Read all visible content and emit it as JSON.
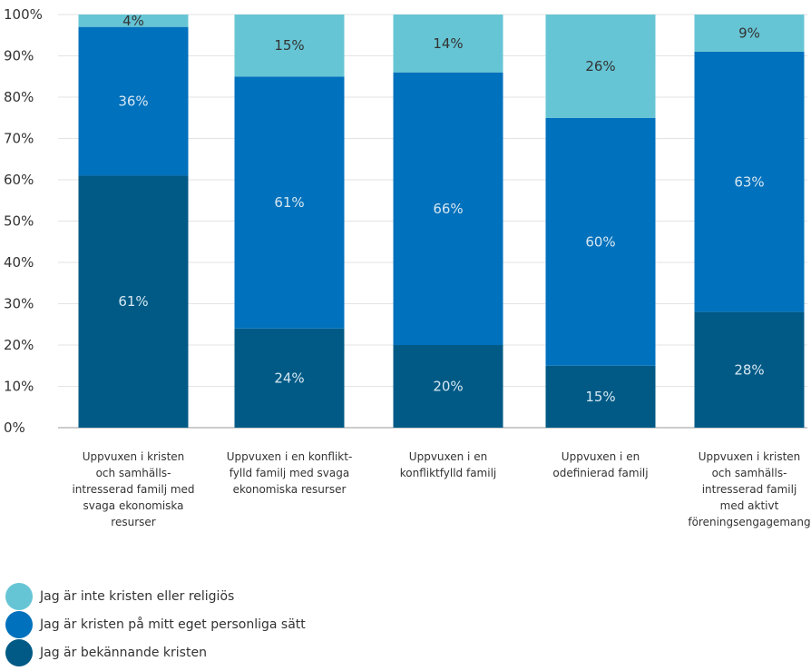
{
  "chart_data": {
    "type": "bar",
    "stacked": true,
    "categories": [
      [
        "Uppvuxen i kristen",
        "och samhälls-",
        "intresserad familj med",
        "svaga ekonomiska",
        "resurser"
      ],
      [
        "Uppvuxen i en konflikt-",
        "fylld familj med svaga",
        "ekonomiska resurser"
      ],
      [
        "Uppvuxen i en",
        "konfliktfylld familj"
      ],
      [
        "Uppvuxen i en",
        "odefinierad familj"
      ],
      [
        "Uppvuxen i kristen",
        "och samhälls-",
        "intresserad familj",
        "med aktivt",
        "föreningsengagemang"
      ]
    ],
    "series": [
      {
        "name": "Jag är bekännande kristen",
        "color": "#005a85",
        "labelColor": "#d6e7f2",
        "values": [
          61,
          24,
          20,
          15,
          28
        ]
      },
      {
        "name": "Jag är kristen på mitt eget personliga sätt",
        "color": "#0071bc",
        "labelColor": "#d6e7f2",
        "values": [
          36,
          61,
          66,
          60,
          63
        ]
      },
      {
        "name": "Jag är inte kristen eller religiös",
        "color": "#66c5d4",
        "labelColor": "#333333",
        "values": [
          4,
          15,
          14,
          26,
          9
        ]
      }
    ],
    "data_labels": [
      [
        "61%",
        "24%",
        "20%",
        "15%",
        "28%"
      ],
      [
        "36%",
        "61%",
        "66%",
        "60%",
        "63%"
      ],
      [
        "4%",
        "15%",
        "14%",
        "26%",
        "9%"
      ]
    ],
    "yticks": [
      "0%",
      "10%",
      "20%",
      "30%",
      "40%",
      "50%",
      "60%",
      "70%",
      "80%",
      "90%",
      "100%"
    ],
    "ylim": [
      0,
      100
    ],
    "grid": true,
    "legend_placement": "bottom-left"
  },
  "legend": [
    {
      "label": "Jag är inte kristen eller religiös",
      "color": "#66c5d4"
    },
    {
      "label": "Jag är kristen på mitt eget personliga sätt",
      "color": "#0071bc"
    },
    {
      "label": "Jag är bekännande kristen",
      "color": "#005a85"
    }
  ]
}
